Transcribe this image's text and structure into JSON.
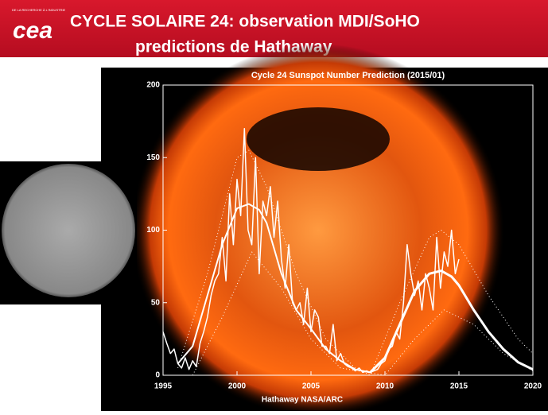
{
  "header": {
    "logo": "cea",
    "logo_tagline": "DE LA RECHERCHE À L'INDUSTRIE",
    "title_line1": "CYCLE SOLAIRE 24: observation MDI/SoHO",
    "title_line2": "predictions de Hathaway"
  },
  "chart_data": {
    "type": "line",
    "title": "Cycle 24 Sunspot Number Prediction (2015/01)",
    "footer": "Hathaway NASA/ARC",
    "xlim": [
      1995,
      2020
    ],
    "xticks": [
      1995,
      2000,
      2005,
      2010,
      2015,
      2020
    ],
    "ylim": [
      0,
      200
    ],
    "yticks": [
      0,
      50,
      100,
      150,
      200
    ],
    "series": [
      {
        "color": "#ffffff",
        "style": "solid",
        "width": 1.5,
        "x": [
          1995,
          1995.25,
          1995.5,
          1995.75,
          1996,
          1996.25,
          1996.5,
          1996.75,
          1997,
          1997.25,
          1997.5,
          1997.75,
          1998,
          1998.25,
          1998.5,
          1998.75,
          1999,
          1999.25,
          1999.5,
          1999.75,
          2000,
          2000.25,
          2000.5,
          2000.75,
          2001,
          2001.25,
          2001.5,
          2001.75,
          2002,
          2002.25,
          2002.5,
          2002.75,
          2003,
          2003.25,
          2003.5,
          2003.75,
          2004,
          2004.25,
          2004.5,
          2004.75,
          2005,
          2005.25,
          2005.5,
          2005.75,
          2006,
          2006.25,
          2006.5,
          2006.75,
          2007,
          2007.25,
          2007.5,
          2007.75,
          2008,
          2008.25,
          2008.5,
          2008.75,
          2009,
          2009.25,
          2009.5,
          2009.75,
          2010,
          2010.25,
          2010.5,
          2010.75,
          2011,
          2011.25,
          2011.5,
          2011.75,
          2012,
          2012.25,
          2012.5,
          2012.75,
          2013,
          2013.25,
          2013.5,
          2013.75,
          2014,
          2014.25,
          2014.5,
          2014.75,
          2015
        ],
        "values": [
          30,
          22,
          15,
          18,
          8,
          5,
          12,
          4,
          10,
          6,
          22,
          30,
          40,
          55,
          65,
          70,
          95,
          65,
          125,
          90,
          135,
          110,
          170,
          100,
          90,
          150,
          70,
          120,
          110,
          130,
          95,
          120,
          80,
          60,
          90,
          50,
          45,
          50,
          35,
          60,
          30,
          45,
          40,
          20,
          20,
          15,
          35,
          10,
          15,
          8,
          6,
          5,
          3,
          5,
          2,
          3,
          2,
          3,
          4,
          8,
          10,
          18,
          20,
          30,
          25,
          50,
          90,
          70,
          55,
          65,
          45,
          70,
          60,
          45,
          95,
          60,
          85,
          75,
          100,
          70,
          80
        ]
      },
      {
        "color": "#ffffff",
        "style": "solid",
        "width": 2,
        "x": [
          1996,
          1997,
          1998,
          1999,
          2000,
          2000.8,
          2001.5,
          2002,
          2003,
          2004,
          2005,
          2006,
          2007,
          2008,
          2009
        ],
        "values": [
          8,
          20,
          55,
          90,
          115,
          118,
          114,
          105,
          70,
          45,
          32,
          18,
          10,
          4,
          2
        ]
      },
      {
        "color": "#ffffff",
        "style": "solid",
        "width": 3,
        "x": [
          2009,
          2010,
          2011,
          2012,
          2013,
          2013.8,
          2014.5,
          2015,
          2016,
          2017,
          2018,
          2019,
          2020
        ],
        "values": [
          2,
          12,
          35,
          58,
          70,
          72,
          68,
          62,
          45,
          30,
          18,
          9,
          4
        ]
      },
      {
        "color": "#ffffff",
        "style": "dotted",
        "width": 1,
        "x": [
          1996,
          1998,
          2000,
          2000.8,
          2002,
          2004,
          2006,
          2008,
          2009,
          2011,
          2013,
          2013.8,
          2015,
          2017,
          2019,
          2020
        ],
        "values": [
          5,
          70,
          150,
          155,
          130,
          70,
          25,
          5,
          0,
          50,
          95,
          100,
          90,
          55,
          25,
          15
        ]
      },
      {
        "color": "#ffffff",
        "style": "dotted",
        "width": 1,
        "x": [
          1997,
          1999,
          2001,
          2003,
          2005,
          2007,
          2010,
          2012,
          2014,
          2016,
          2018,
          2020
        ],
        "values": [
          0,
          40,
          85,
          60,
          25,
          5,
          0,
          25,
          45,
          35,
          15,
          3
        ]
      }
    ]
  }
}
